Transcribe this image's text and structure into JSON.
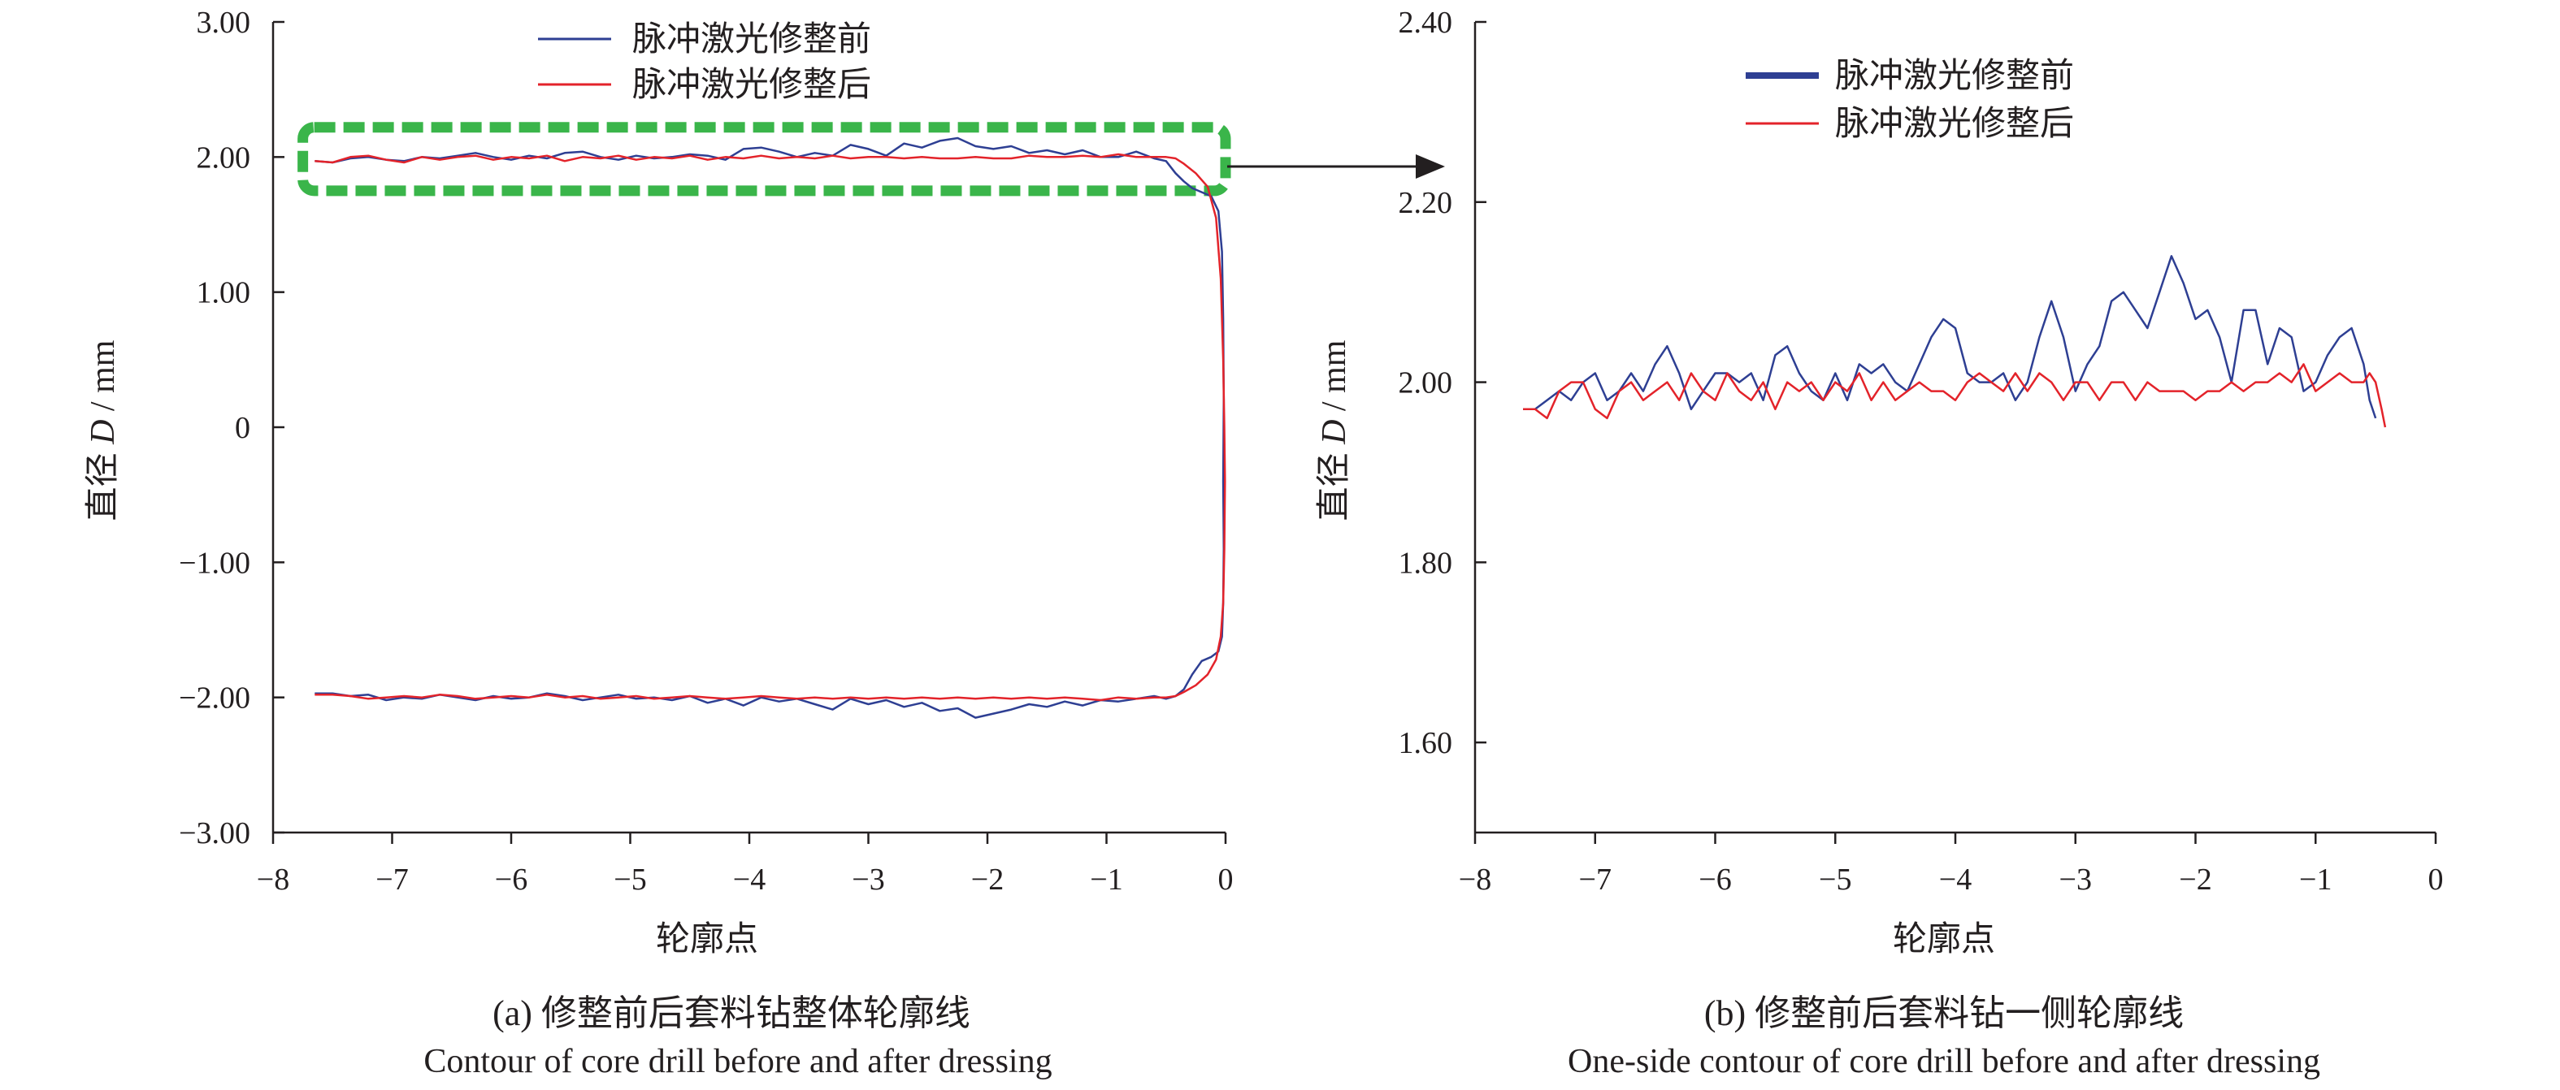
{
  "chart_data": [
    {
      "type": "line",
      "panel": "(a)",
      "caption_cn": "(a) 修整前后套料钻整体轮廓线",
      "caption_en": "Contour of core drill before and after dressing",
      "xlabel": "轮廓点",
      "ylabel_prefix": "直径 ",
      "ylabel_var": "D",
      "ylabel_suffix": " / mm",
      "xlim": [
        -8,
        0
      ],
      "ylim": [
        -3,
        3
      ],
      "x_ticks": [
        -8,
        -7,
        -6,
        -5,
        -4,
        -3,
        -2,
        -1,
        0
      ],
      "x_tick_labels": [
        "−8",
        "−7",
        "−6",
        "−5",
        "−4",
        "−3",
        "−2",
        "−1",
        "0"
      ],
      "y_ticks": [
        3,
        2,
        1,
        0,
        -1,
        -2,
        -3
      ],
      "y_tick_labels": [
        "3.00",
        "2.00",
        "1.00",
        "0",
        "−1.00",
        "−2.00",
        "−3.00"
      ],
      "legend_position": "top-center",
      "highlight_box": {
        "x": [
          -7.75,
          0
        ],
        "y": [
          1.75,
          2.22
        ],
        "color": "#3ab54a"
      },
      "series": [
        {
          "name": "脉冲激光修整前",
          "color": "#2e3f93",
          "x": [
            -7.65,
            -7.5,
            -7.35,
            -7.2,
            -7.05,
            -6.9,
            -6.75,
            -6.6,
            -6.45,
            -6.3,
            -6.15,
            -6.0,
            -5.85,
            -5.7,
            -5.55,
            -5.4,
            -5.25,
            -5.1,
            -4.95,
            -4.8,
            -4.65,
            -4.5,
            -4.35,
            -4.2,
            -4.05,
            -3.9,
            -3.75,
            -3.6,
            -3.45,
            -3.3,
            -3.15,
            -3.0,
            -2.85,
            -2.7,
            -2.55,
            -2.4,
            -2.25,
            -2.1,
            -1.95,
            -1.8,
            -1.65,
            -1.5,
            -1.35,
            -1.2,
            -1.05,
            -0.9,
            -0.75,
            -0.6,
            -0.5,
            -0.42,
            -0.35,
            -0.28,
            -0.2,
            -0.12,
            -0.06,
            -0.03,
            -0.02,
            -0.015,
            -0.02,
            -0.015,
            -0.02,
            -0.03,
            -0.06,
            -0.12,
            -0.2,
            -0.28,
            -0.35,
            -0.42,
            -0.5,
            -0.6,
            -0.75,
            -0.9,
            -1.05,
            -1.2,
            -1.35,
            -1.5,
            -1.65,
            -1.8,
            -1.95,
            -2.1,
            -2.25,
            -2.4,
            -2.55,
            -2.7,
            -2.85,
            -3.0,
            -3.15,
            -3.3,
            -3.45,
            -3.6,
            -3.75,
            -3.9,
            -4.05,
            -4.2,
            -4.35,
            -4.5,
            -4.65,
            -4.8,
            -4.95,
            -5.1,
            -5.25,
            -5.4,
            -5.55,
            -5.7,
            -5.85,
            -6.0,
            -6.15,
            -6.3,
            -6.45,
            -6.6,
            -6.75,
            -6.9,
            -7.05,
            -7.2,
            -7.35,
            -7.5,
            -7.65
          ],
          "y": [
            1.97,
            1.96,
            1.99,
            2.0,
            1.98,
            1.97,
            2.0,
            1.99,
            2.01,
            2.03,
            2.0,
            1.98,
            2.01,
            1.99,
            2.03,
            2.04,
            2.0,
            1.98,
            2.01,
            1.99,
            2.0,
            2.02,
            2.01,
            1.98,
            2.06,
            2.07,
            2.04,
            2.0,
            2.03,
            2.01,
            2.09,
            2.06,
            2.01,
            2.1,
            2.07,
            2.12,
            2.14,
            2.08,
            2.06,
            2.08,
            2.03,
            2.05,
            2.02,
            2.05,
            2.0,
            2.0,
            2.04,
            1.99,
            1.97,
            1.88,
            1.82,
            1.77,
            1.74,
            1.71,
            1.6,
            1.3,
            0.8,
            0.2,
            -0.4,
            -0.9,
            -1.3,
            -1.55,
            -1.66,
            -1.7,
            -1.73,
            -1.83,
            -1.94,
            -1.99,
            -2.01,
            -1.99,
            -2.01,
            -2.03,
            -2.02,
            -2.06,
            -2.03,
            -2.07,
            -2.05,
            -2.09,
            -2.12,
            -2.15,
            -2.08,
            -2.1,
            -2.04,
            -2.07,
            -2.02,
            -2.05,
            -2.01,
            -2.09,
            -2.05,
            -2.01,
            -2.03,
            -2.0,
            -2.06,
            -2.01,
            -2.04,
            -1.99,
            -2.02,
            -2.0,
            -2.01,
            -1.98,
            -2.0,
            -2.02,
            -1.99,
            -1.97,
            -2.0,
            -2.01,
            -1.99,
            -2.02,
            -2.0,
            -1.98,
            -2.01,
            -2.0,
            -2.02,
            -1.98,
            -1.99,
            -1.97,
            -1.97
          ]
        },
        {
          "name": "脉冲激光修整后",
          "color": "#e3232a",
          "x": [
            -7.65,
            -7.5,
            -7.35,
            -7.2,
            -7.05,
            -6.9,
            -6.75,
            -6.6,
            -6.45,
            -6.3,
            -6.15,
            -6.0,
            -5.85,
            -5.7,
            -5.55,
            -5.4,
            -5.25,
            -5.1,
            -4.95,
            -4.8,
            -4.65,
            -4.5,
            -4.35,
            -4.2,
            -4.05,
            -3.9,
            -3.75,
            -3.6,
            -3.45,
            -3.3,
            -3.15,
            -3.0,
            -2.85,
            -2.7,
            -2.55,
            -2.4,
            -2.25,
            -2.1,
            -1.95,
            -1.8,
            -1.65,
            -1.5,
            -1.35,
            -1.2,
            -1.05,
            -0.9,
            -0.75,
            -0.6,
            -0.5,
            -0.42,
            -0.35,
            -0.25,
            -0.15,
            -0.08,
            -0.04,
            -0.02,
            -0.01,
            -0.005,
            -0.01,
            -0.02,
            -0.04,
            -0.08,
            -0.15,
            -0.25,
            -0.35,
            -0.42,
            -0.5,
            -0.6,
            -0.75,
            -0.9,
            -1.05,
            -1.2,
            -1.35,
            -1.5,
            -1.65,
            -1.8,
            -1.95,
            -2.1,
            -2.25,
            -2.4,
            -2.55,
            -2.7,
            -2.85,
            -3.0,
            -3.15,
            -3.3,
            -3.45,
            -3.6,
            -3.75,
            -3.9,
            -4.05,
            -4.2,
            -4.35,
            -4.5,
            -4.65,
            -4.8,
            -4.95,
            -5.1,
            -5.25,
            -5.4,
            -5.55,
            -5.7,
            -5.85,
            -6.0,
            -6.15,
            -6.3,
            -6.45,
            -6.6,
            -6.75,
            -6.9,
            -7.05,
            -7.2,
            -7.35,
            -7.5,
            -7.65
          ],
          "y": [
            1.97,
            1.96,
            2.0,
            2.01,
            1.98,
            1.96,
            2.0,
            1.98,
            2.0,
            2.01,
            1.98,
            2.0,
            1.99,
            2.01,
            1.97,
            2.0,
            1.99,
            2.01,
            1.98,
            2.0,
            1.99,
            2.01,
            1.98,
            2.0,
            1.99,
            2.01,
            1.99,
            2.0,
            1.99,
            2.01,
            1.99,
            2.0,
            2.0,
            1.99,
            2.0,
            1.99,
            1.99,
            2.0,
            1.99,
            1.99,
            2.01,
            2.0,
            2.0,
            2.01,
            2.0,
            2.02,
            2.0,
            2.0,
            2.0,
            1.99,
            1.95,
            1.88,
            1.78,
            1.55,
            1.1,
            0.5,
            0.0,
            -0.4,
            -0.9,
            -1.3,
            -1.55,
            -1.72,
            -1.83,
            -1.91,
            -1.96,
            -1.99,
            -2.0,
            -2.0,
            -2.01,
            -2.0,
            -2.02,
            -2.01,
            -2.0,
            -2.01,
            -2.0,
            -2.01,
            -2.0,
            -2.01,
            -2.0,
            -2.01,
            -2.0,
            -2.01,
            -2.0,
            -2.01,
            -2.0,
            -2.01,
            -2.0,
            -2.01,
            -2.0,
            -1.99,
            -2.0,
            -2.01,
            -2.0,
            -1.99,
            -2.0,
            -2.01,
            -1.99,
            -2.0,
            -2.01,
            -1.99,
            -2.0,
            -1.98,
            -2.0,
            -1.99,
            -2.0,
            -2.01,
            -1.99,
            -1.98,
            -2.0,
            -1.99,
            -2.0,
            -2.01,
            -1.99,
            -1.98,
            -1.98
          ]
        }
      ]
    },
    {
      "type": "line",
      "panel": "(b)",
      "caption_cn": "(b) 修整前后套料钻一侧轮廓线",
      "caption_en": "One-side contour of core drill before and after dressing",
      "xlabel": "轮廓点",
      "ylabel_prefix": "直径 ",
      "ylabel_var": "D",
      "ylabel_suffix": " / mm",
      "xlim": [
        -8,
        0
      ],
      "ylim": [
        1.5,
        2.4
      ],
      "x_ticks": [
        -8,
        -7,
        -6,
        -5,
        -4,
        -3,
        -2,
        -1,
        0
      ],
      "x_tick_labels": [
        "−8",
        "−7",
        "−6",
        "−5",
        "−4",
        "−3",
        "−2",
        "−1",
        "0"
      ],
      "y_ticks": [
        2.4,
        2.2,
        2.0,
        1.8,
        1.6
      ],
      "y_tick_labels": [
        "2.40",
        "2.20",
        "2.00",
        "1.80",
        "1.60"
      ],
      "legend_position": "top-center",
      "series": [
        {
          "name": "脉冲激光修整前",
          "color": "#2e3f93",
          "x": [
            -7.6,
            -7.5,
            -7.4,
            -7.3,
            -7.2,
            -7.1,
            -7.0,
            -6.9,
            -6.8,
            -6.7,
            -6.6,
            -6.5,
            -6.4,
            -6.3,
            -6.2,
            -6.1,
            -6.0,
            -5.9,
            -5.8,
            -5.7,
            -5.6,
            -5.5,
            -5.4,
            -5.3,
            -5.2,
            -5.1,
            -5.0,
            -4.9,
            -4.8,
            -4.7,
            -4.6,
            -4.5,
            -4.4,
            -4.3,
            -4.2,
            -4.1,
            -4.0,
            -3.9,
            -3.8,
            -3.7,
            -3.6,
            -3.5,
            -3.4,
            -3.3,
            -3.2,
            -3.1,
            -3.0,
            -2.9,
            -2.8,
            -2.7,
            -2.6,
            -2.5,
            -2.4,
            -2.3,
            -2.2,
            -2.1,
            -2.0,
            -1.9,
            -1.8,
            -1.7,
            -1.6,
            -1.5,
            -1.4,
            -1.3,
            -1.2,
            -1.1,
            -1.0,
            -0.9,
            -0.8,
            -0.7,
            -0.6,
            -0.55,
            -0.5
          ],
          "y": [
            1.97,
            1.97,
            1.98,
            1.99,
            1.98,
            2.0,
            2.01,
            1.98,
            1.99,
            2.01,
            1.99,
            2.02,
            2.04,
            2.01,
            1.97,
            1.99,
            2.01,
            2.01,
            2.0,
            2.01,
            1.98,
            2.03,
            2.04,
            2.01,
            1.99,
            1.98,
            2.01,
            1.98,
            2.02,
            2.01,
            2.02,
            2.0,
            1.99,
            2.02,
            2.05,
            2.07,
            2.06,
            2.01,
            2.0,
            2.0,
            2.01,
            1.98,
            2.0,
            2.05,
            2.09,
            2.05,
            1.99,
            2.02,
            2.04,
            2.09,
            2.1,
            2.08,
            2.06,
            2.1,
            2.14,
            2.11,
            2.07,
            2.08,
            2.05,
            2.0,
            2.08,
            2.08,
            2.02,
            2.06,
            2.05,
            1.99,
            2.0,
            2.03,
            2.05,
            2.06,
            2.02,
            1.98,
            1.96
          ]
        },
        {
          "name": "脉冲激光修整后",
          "color": "#e3232a",
          "x": [
            -7.6,
            -7.5,
            -7.4,
            -7.3,
            -7.2,
            -7.1,
            -7.0,
            -6.9,
            -6.8,
            -6.7,
            -6.6,
            -6.5,
            -6.4,
            -6.3,
            -6.2,
            -6.1,
            -6.0,
            -5.9,
            -5.8,
            -5.7,
            -5.6,
            -5.5,
            -5.4,
            -5.3,
            -5.2,
            -5.1,
            -5.0,
            -4.9,
            -4.8,
            -4.7,
            -4.6,
            -4.5,
            -4.4,
            -4.3,
            -4.2,
            -4.1,
            -4.0,
            -3.9,
            -3.8,
            -3.7,
            -3.6,
            -3.5,
            -3.4,
            -3.3,
            -3.2,
            -3.1,
            -3.0,
            -2.9,
            -2.8,
            -2.7,
            -2.6,
            -2.5,
            -2.4,
            -2.3,
            -2.2,
            -2.1,
            -2.0,
            -1.9,
            -1.8,
            -1.7,
            -1.6,
            -1.5,
            -1.4,
            -1.3,
            -1.2,
            -1.1,
            -1.0,
            -0.9,
            -0.8,
            -0.7,
            -0.6,
            -0.55,
            -0.5,
            -0.45,
            -0.42
          ],
          "y": [
            1.97,
            1.97,
            1.96,
            1.99,
            2.0,
            2.0,
            1.97,
            1.96,
            1.99,
            2.0,
            1.98,
            1.99,
            2.0,
            1.98,
            2.01,
            1.99,
            1.98,
            2.01,
            1.99,
            1.98,
            2.0,
            1.97,
            2.0,
            1.99,
            2.0,
            1.98,
            2.0,
            1.99,
            2.01,
            1.98,
            2.0,
            1.98,
            1.99,
            2.0,
            1.99,
            1.99,
            1.98,
            2.0,
            2.01,
            2.0,
            1.99,
            2.01,
            1.99,
            2.01,
            2.0,
            1.98,
            2.0,
            2.0,
            1.98,
            2.0,
            2.0,
            1.98,
            2.0,
            1.99,
            1.99,
            1.99,
            1.98,
            1.99,
            1.99,
            2.0,
            1.99,
            2.0,
            2.0,
            2.01,
            2.0,
            2.02,
            1.99,
            2.0,
            2.01,
            2.0,
            2.0,
            2.01,
            2.0,
            1.97,
            1.95
          ]
        }
      ]
    }
  ]
}
